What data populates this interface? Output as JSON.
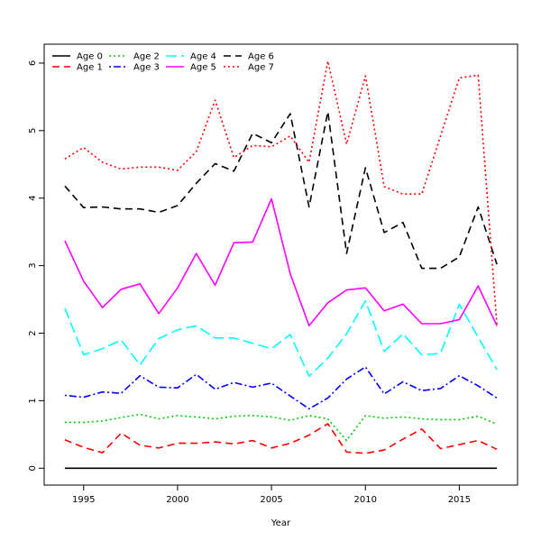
{
  "chart_data": {
    "type": "line",
    "title": "",
    "xlabel": "Year",
    "ylabel": "",
    "x": [
      1994,
      1995,
      1996,
      1997,
      1998,
      1999,
      2000,
      2001,
      2002,
      2003,
      2004,
      2005,
      2006,
      2007,
      2008,
      2009,
      2010,
      2011,
      2012,
      2013,
      2014,
      2015,
      2016,
      2017
    ],
    "xlim": [
      1992.9,
      2018.1
    ],
    "ylim": [
      -0.25,
      6.28
    ],
    "xticks": [
      1995,
      2000,
      2005,
      2010,
      2015
    ],
    "yticks": [
      0,
      1,
      2,
      3,
      4,
      5,
      6
    ],
    "legend_position": "top-left",
    "series": [
      {
        "name": "Age 0",
        "color": "#000000",
        "dash": "solid",
        "values": [
          0,
          0,
          0,
          0,
          0,
          0,
          0,
          0,
          0,
          0,
          0,
          0,
          0,
          0,
          0,
          0,
          0,
          0,
          0,
          0,
          0,
          0,
          0,
          0
        ]
      },
      {
        "name": "Age 1",
        "color": "#ff0000",
        "dash": "dashed",
        "values": [
          0.42,
          0.31,
          0.23,
          0.52,
          0.34,
          0.3,
          0.37,
          0.37,
          0.39,
          0.36,
          0.41,
          0.3,
          0.37,
          0.49,
          0.66,
          0.24,
          0.22,
          0.27,
          0.43,
          0.58,
          0.29,
          0.35,
          0.41,
          0.28
        ]
      },
      {
        "name": "Age 2",
        "color": "#00cd00",
        "dash": "dotted",
        "values": [
          0.68,
          0.68,
          0.7,
          0.75,
          0.8,
          0.73,
          0.78,
          0.76,
          0.73,
          0.77,
          0.78,
          0.76,
          0.71,
          0.78,
          0.73,
          0.41,
          0.78,
          0.74,
          0.76,
          0.73,
          0.72,
          0.72,
          0.77,
          0.65
        ]
      },
      {
        "name": "Age 3",
        "color": "#0000ff",
        "dash": "dotdash",
        "values": [
          1.08,
          1.05,
          1.13,
          1.11,
          1.37,
          1.2,
          1.19,
          1.39,
          1.17,
          1.27,
          1.2,
          1.26,
          1.07,
          0.88,
          1.04,
          1.32,
          1.5,
          1.1,
          1.28,
          1.15,
          1.18,
          1.37,
          1.22,
          1.04
        ]
      },
      {
        "name": "Age 4",
        "color": "#00ffff",
        "dash": "longdash",
        "values": [
          2.37,
          1.68,
          1.77,
          1.9,
          1.53,
          1.92,
          2.05,
          2.11,
          1.93,
          1.93,
          1.85,
          1.77,
          1.98,
          1.36,
          1.63,
          1.99,
          2.48,
          1.73,
          1.99,
          1.68,
          1.7,
          2.43,
          1.94,
          1.46
        ]
      },
      {
        "name": "Age 5",
        "color": "#ff00ff",
        "dash": "solid",
        "values": [
          3.37,
          2.77,
          2.38,
          2.65,
          2.73,
          2.29,
          2.67,
          3.18,
          2.71,
          3.34,
          3.35,
          3.99,
          2.88,
          2.11,
          2.45,
          2.64,
          2.67,
          2.33,
          2.43,
          2.14,
          2.14,
          2.2,
          2.7,
          2.11
        ]
      },
      {
        "name": "Age 6",
        "color": "#000000",
        "dash": "dashed",
        "values": [
          4.18,
          3.86,
          3.87,
          3.84,
          3.84,
          3.79,
          3.89,
          4.22,
          4.51,
          4.4,
          4.96,
          4.82,
          5.25,
          3.87,
          5.28,
          3.18,
          4.45,
          3.49,
          3.64,
          2.96,
          2.96,
          3.13,
          3.87,
          3.02
        ]
      },
      {
        "name": "Age 7",
        "color": "#ff0000",
        "dash": "dotted",
        "values": [
          4.58,
          4.75,
          4.53,
          4.43,
          4.46,
          4.46,
          4.41,
          4.69,
          5.45,
          4.6,
          4.78,
          4.76,
          4.92,
          4.53,
          6.03,
          4.8,
          5.81,
          4.17,
          4.06,
          4.06,
          4.92,
          5.78,
          5.82,
          2.12
        ]
      }
    ]
  }
}
